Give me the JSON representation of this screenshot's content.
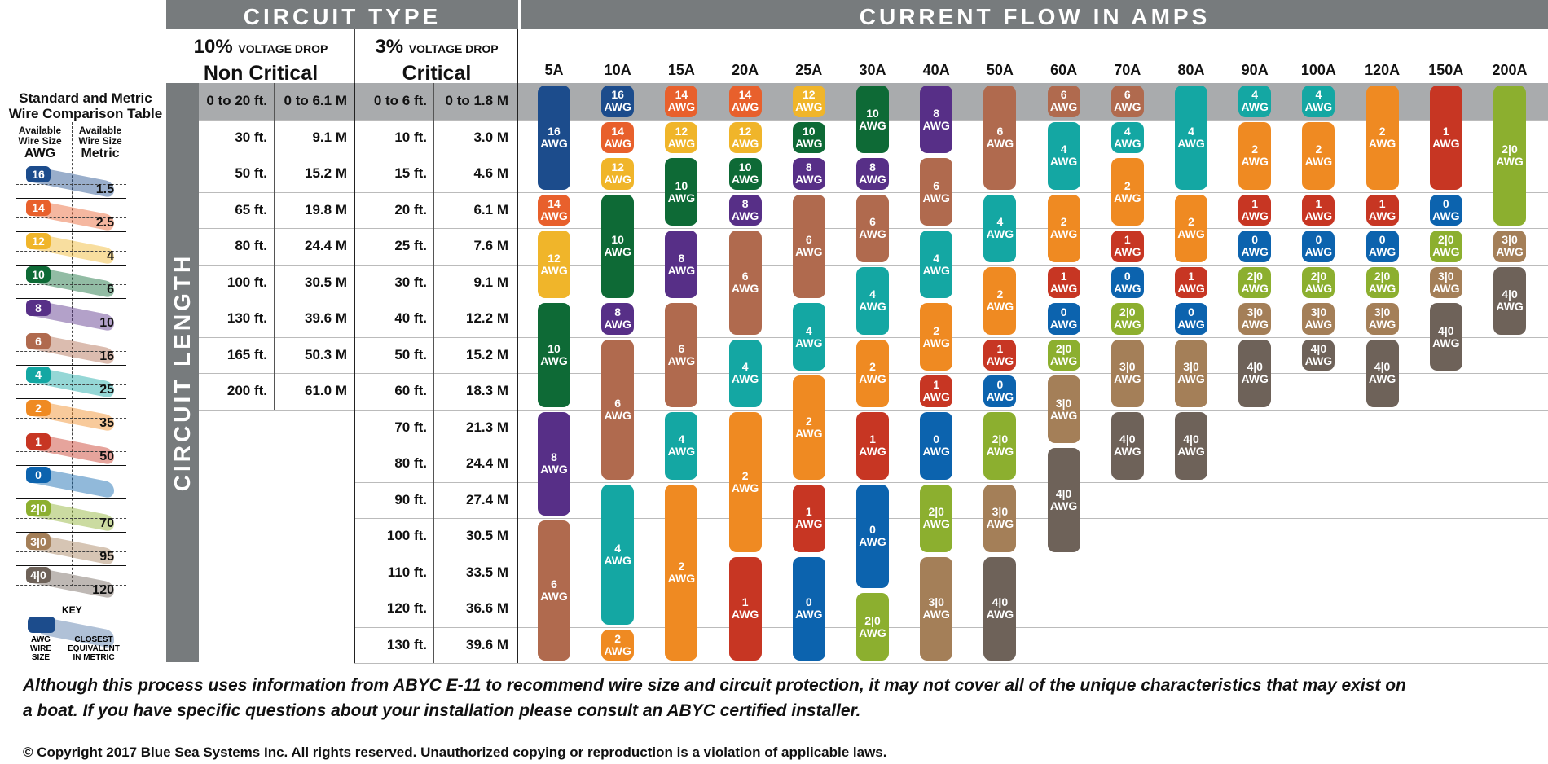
{
  "header": {
    "circuit_type": "CIRCUIT TYPE",
    "current_flow": "CURRENT FLOW IN AMPS",
    "circuit_length": "CIRCUIT LENGTH"
  },
  "voltage_drop": {
    "ten": {
      "pct": "10%",
      "label": "VOLTAGE DROP",
      "type": "Non Critical"
    },
    "three": {
      "pct": "3%",
      "label": "VOLTAGE DROP",
      "type": "Critical"
    }
  },
  "legend": {
    "title_line1": "Standard and Metric",
    "title_line2": "Wire Comparison Table",
    "awg_sub": "Available Wire Size",
    "awg_head": "AWG",
    "metric_sub": "Available Wire Size",
    "metric_head": "Metric",
    "items": [
      {
        "awg": "16",
        "metric": "1.5",
        "color": "#1c4c8c"
      },
      {
        "awg": "14",
        "metric": "2.5",
        "color": "#e8602c"
      },
      {
        "awg": "12",
        "metric": "4",
        "color": "#f0b52a"
      },
      {
        "awg": "10",
        "metric": "6",
        "color": "#0e6a36"
      },
      {
        "awg": "8",
        "metric": "10",
        "color": "#572f87"
      },
      {
        "awg": "6",
        "metric": "16",
        "color": "#b06a4e"
      },
      {
        "awg": "4",
        "metric": "25",
        "color": "#14a7a3"
      },
      {
        "awg": "2",
        "metric": "35",
        "color": "#ef8a22"
      },
      {
        "awg": "1",
        "metric": "50",
        "color": "#c73623"
      },
      {
        "awg": "0",
        "metric": "",
        "color": "#0c63ae"
      },
      {
        "awg": "2|0",
        "metric": "70",
        "color": "#8caf2f"
      },
      {
        "awg": "3|0",
        "metric": "95",
        "color": "#a47f58"
      },
      {
        "awg": "4|0",
        "metric": "120",
        "color": "#6e6259"
      }
    ],
    "key_title": "KEY",
    "key_awg": "AWG WIRE SIZE",
    "key_metric": "CLOSEST EQUIVALENT IN METRIC"
  },
  "chart_data": {
    "type": "table",
    "amps": [
      "5A",
      "10A",
      "15A",
      "20A",
      "25A",
      "30A",
      "40A",
      "50A",
      "60A",
      "70A",
      "80A",
      "90A",
      "100A",
      "120A",
      "150A",
      "200A"
    ],
    "lengths_10pct": [
      {
        "ft": "0 to 20 ft.",
        "m": "0 to 6.1 M"
      },
      {
        "ft": "30 ft.",
        "m": "9.1 M"
      },
      {
        "ft": "50 ft.",
        "m": "15.2 M"
      },
      {
        "ft": "65 ft.",
        "m": "19.8 M"
      },
      {
        "ft": "80 ft.",
        "m": "24.4 M"
      },
      {
        "ft": "100 ft.",
        "m": "30.5 M"
      },
      {
        "ft": "130 ft.",
        "m": "39.6 M"
      },
      {
        "ft": "165 ft.",
        "m": "50.3 M"
      },
      {
        "ft": "200 ft.",
        "m": "61.0 M"
      }
    ],
    "lengths_3pct": [
      {
        "ft": "0 to 6 ft.",
        "m": "0 to 1.8 M"
      },
      {
        "ft": "10 ft.",
        "m": "3.0 M"
      },
      {
        "ft": "15 ft.",
        "m": "4.6 M"
      },
      {
        "ft": "20 ft.",
        "m": "6.1 M"
      },
      {
        "ft": "25 ft.",
        "m": "7.6 M"
      },
      {
        "ft": "30 ft.",
        "m": "9.1 M"
      },
      {
        "ft": "40 ft.",
        "m": "12.2 M"
      },
      {
        "ft": "50 ft.",
        "m": "15.2 M"
      },
      {
        "ft": "60 ft.",
        "m": "18.3 M"
      },
      {
        "ft": "70 ft.",
        "m": "21.3 M"
      },
      {
        "ft": "80 ft.",
        "m": "24.4 M"
      },
      {
        "ft": "90 ft.",
        "m": "27.4 M"
      },
      {
        "ft": "100 ft.",
        "m": "30.5 M"
      },
      {
        "ft": "110 ft.",
        "m": "33.5 M"
      },
      {
        "ft": "120 ft.",
        "m": "36.6 M"
      },
      {
        "ft": "130 ft.",
        "m": "39.6 M"
      }
    ],
    "awg_unit": "AWG",
    "colors": {
      "16": "#1c4c8c",
      "14": "#e8602c",
      "12": "#f0b52a",
      "10": "#0e6a36",
      "8": "#572f87",
      "6": "#b06a4e",
      "4": "#14a7a3",
      "2": "#ef8a22",
      "1": "#c73623",
      "0": "#0c63ae",
      "2|0": "#8caf2f",
      "3|0": "#a47f58",
      "4|0": "#6e6259"
    },
    "columns": [
      [
        [
          "16",
          0,
          3
        ],
        [
          "14",
          3,
          1
        ],
        [
          "12",
          4,
          2
        ],
        [
          "10",
          6,
          3
        ],
        [
          "8",
          9,
          3
        ],
        [
          "6",
          12,
          4
        ]
      ],
      [
        [
          "16",
          0,
          1
        ],
        [
          "14",
          1,
          1
        ],
        [
          "12",
          2,
          1
        ],
        [
          "10",
          3,
          3
        ],
        [
          "8",
          6,
          1
        ],
        [
          "6",
          7,
          4
        ],
        [
          "4",
          11,
          4
        ],
        [
          "2",
          15,
          1
        ]
      ],
      [
        [
          "14",
          0,
          1
        ],
        [
          "12",
          1,
          1
        ],
        [
          "10",
          2,
          2
        ],
        [
          "8",
          4,
          2
        ],
        [
          "6",
          6,
          3
        ],
        [
          "4",
          9,
          2
        ],
        [
          "2",
          11,
          5
        ]
      ],
      [
        [
          "14",
          0,
          1
        ],
        [
          "12",
          1,
          1
        ],
        [
          "10",
          2,
          1
        ],
        [
          "8",
          3,
          1
        ],
        [
          "6",
          4,
          3
        ],
        [
          "4",
          7,
          2
        ],
        [
          "2",
          9,
          4
        ],
        [
          "1",
          13,
          3
        ]
      ],
      [
        [
          "12",
          0,
          1
        ],
        [
          "10",
          1,
          1
        ],
        [
          "8",
          2,
          1
        ],
        [
          "6",
          3,
          3
        ],
        [
          "4",
          6,
          2
        ],
        [
          "2",
          8,
          3
        ],
        [
          "1",
          11,
          2
        ],
        [
          "0",
          13,
          3
        ]
      ],
      [
        [
          "10",
          0,
          2
        ],
        [
          "8",
          2,
          1
        ],
        [
          "6",
          3,
          2
        ],
        [
          "4",
          5,
          2
        ],
        [
          "2",
          7,
          2
        ],
        [
          "1",
          9,
          2
        ],
        [
          "0",
          11,
          3
        ],
        [
          "2|0",
          14,
          2
        ]
      ],
      [
        [
          "8",
          0,
          2
        ],
        [
          "6",
          2,
          2
        ],
        [
          "4",
          4,
          2
        ],
        [
          "2",
          6,
          2
        ],
        [
          "1",
          8,
          1
        ],
        [
          "0",
          9,
          2
        ],
        [
          "2|0",
          11,
          2
        ],
        [
          "3|0",
          13,
          3
        ]
      ],
      [
        [
          "6",
          0,
          3
        ],
        [
          "4",
          3,
          2
        ],
        [
          "2",
          5,
          2
        ],
        [
          "1",
          7,
          1
        ],
        [
          "0",
          8,
          1
        ],
        [
          "2|0",
          9,
          2
        ],
        [
          "3|0",
          11,
          2
        ],
        [
          "4|0",
          13,
          3
        ]
      ],
      [
        [
          "6",
          0,
          1
        ],
        [
          "4",
          1,
          2
        ],
        [
          "2",
          3,
          2
        ],
        [
          "1",
          5,
          1
        ],
        [
          "0",
          6,
          1
        ],
        [
          "2|0",
          7,
          1
        ],
        [
          "3|0",
          8,
          2
        ],
        [
          "4|0",
          10,
          3
        ]
      ],
      [
        [
          "6",
          0,
          1
        ],
        [
          "4",
          1,
          1
        ],
        [
          "2",
          2,
          2
        ],
        [
          "1",
          4,
          1
        ],
        [
          "0",
          5,
          1
        ],
        [
          "2|0",
          6,
          1
        ],
        [
          "3|0",
          7,
          2
        ],
        [
          "4|0",
          9,
          2
        ]
      ],
      [
        [
          "4",
          0,
          3
        ],
        [
          "2",
          3,
          2
        ],
        [
          "1",
          5,
          1
        ],
        [
          "0",
          6,
          1
        ],
        [
          "3|0",
          7,
          2
        ],
        [
          "4|0",
          9,
          2
        ]
      ],
      [
        [
          "4",
          0,
          1
        ],
        [
          "2",
          1,
          2
        ],
        [
          "1",
          3,
          1
        ],
        [
          "0",
          4,
          1
        ],
        [
          "2|0",
          5,
          1
        ],
        [
          "3|0",
          6,
          1
        ],
        [
          "4|0",
          7,
          2
        ]
      ],
      [
        [
          "4",
          0,
          1
        ],
        [
          "2",
          1,
          2
        ],
        [
          "1",
          3,
          1
        ],
        [
          "0",
          4,
          1
        ],
        [
          "2|0",
          5,
          1
        ],
        [
          "3|0",
          6,
          1
        ],
        [
          "4|0",
          7,
          1
        ]
      ],
      [
        [
          "2",
          0,
          3
        ],
        [
          "1",
          3,
          1
        ],
        [
          "0",
          4,
          1
        ],
        [
          "2|0",
          5,
          1
        ],
        [
          "3|0",
          6,
          1
        ],
        [
          "4|0",
          7,
          2
        ]
      ],
      [
        [
          "1",
          0,
          3
        ],
        [
          "0",
          3,
          1
        ],
        [
          "2|0",
          4,
          1
        ],
        [
          "3|0",
          5,
          1
        ],
        [
          "4|0",
          6,
          2
        ]
      ],
      [
        [
          "2|0",
          0,
          4
        ],
        [
          "3|0",
          4,
          1
        ],
        [
          "4|0",
          5,
          2
        ]
      ]
    ]
  },
  "footer": {
    "note": "Although this process uses information from ABYC E-11 to recommend wire size and circuit protection, it may not cover all of the unique characteristics that may exist on a boat. If you have specific questions about your installation please consult an ABYC certified installer.",
    "copyright": "© Copyright 2017 Blue Sea Systems Inc. All rights reserved. Unauthorized copying or reproduction is a violation of applicable laws."
  }
}
